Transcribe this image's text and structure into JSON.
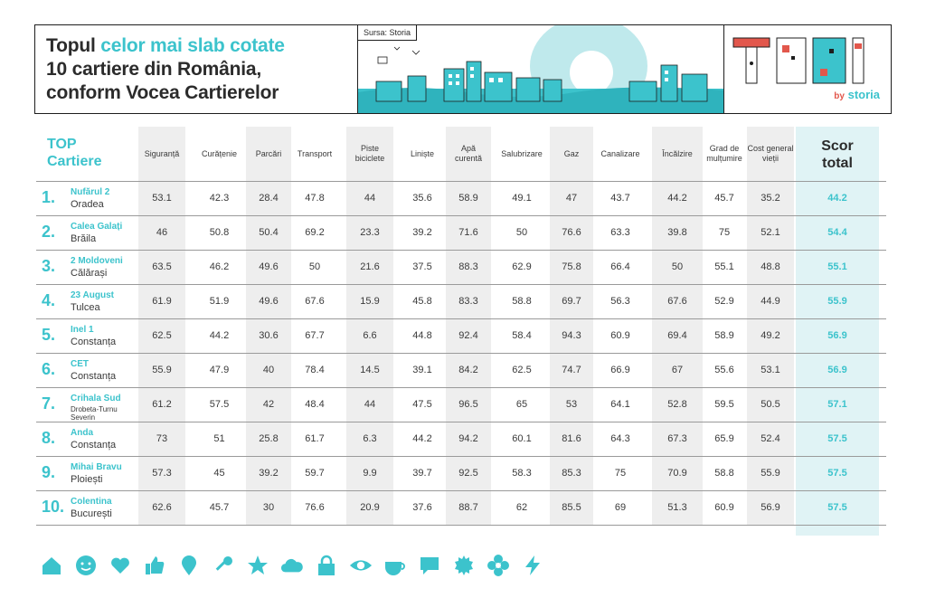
{
  "header": {
    "title_part1": "Topul ",
    "title_highlight": "celor mai slab cotate",
    "title_line2": "10 cartiere din România,",
    "title_line3": "conform Vocea Cartierelor",
    "source": "Sursa: Storia"
  },
  "logo": {
    "by": "by",
    "brand": "storia"
  },
  "table": {
    "top_label_1": "TOP",
    "top_label_2": "Cartiere",
    "score_label_1": "Scor",
    "score_label_2": "total",
    "columns": [
      {
        "line1": "Siguranță",
        "line2": ""
      },
      {
        "line1": "Curățenie",
        "line2": ""
      },
      {
        "line1": "Parcări",
        "line2": ""
      },
      {
        "line1": "Transport",
        "line2": ""
      },
      {
        "line1": "Piste",
        "line2": "biciclete"
      },
      {
        "line1": "Liniște",
        "line2": ""
      },
      {
        "line1": "Apă",
        "line2": "curentă"
      },
      {
        "line1": "Salubrizare",
        "line2": ""
      },
      {
        "line1": "Gaz",
        "line2": ""
      },
      {
        "line1": "Canalizare",
        "line2": ""
      },
      {
        "line1": "Încălzire",
        "line2": ""
      },
      {
        "line1": "Grad de",
        "line2": "mulțumire"
      },
      {
        "line1": "Cost general",
        "line2": "vieții"
      }
    ],
    "rows": [
      {
        "rank": "1.",
        "name": "Nufărul 2",
        "city": "Oradea",
        "values": [
          "53.1",
          "42.3",
          "28.4",
          "47.8",
          "44",
          "35.6",
          "58.9",
          "49.1",
          "47",
          "43.7",
          "44.2",
          "45.7",
          "35.2"
        ],
        "score": "44.2"
      },
      {
        "rank": "2.",
        "name": "Calea Galați",
        "city": "Brăila",
        "values": [
          "46",
          "50.8",
          "50.4",
          "69.2",
          "23.3",
          "39.2",
          "71.6",
          "50",
          "76.6",
          "63.3",
          "39.8",
          "75",
          "52.1"
        ],
        "score": "54.4"
      },
      {
        "rank": "3.",
        "name": "2 Moldoveni",
        "city": "Călărași",
        "values": [
          "63.5",
          "46.2",
          "49.6",
          "50",
          "21.6",
          "37.5",
          "88.3",
          "62.9",
          "75.8",
          "66.4",
          "50",
          "55.1",
          "48.8"
        ],
        "score": "55.1"
      },
      {
        "rank": "4.",
        "name": "23 August",
        "city": "Tulcea",
        "values": [
          "61.9",
          "51.9",
          "49.6",
          "67.6",
          "15.9",
          "45.8",
          "83.3",
          "58.8",
          "69.7",
          "56.3",
          "67.6",
          "52.9",
          "44.9"
        ],
        "score": "55.9"
      },
      {
        "rank": "5.",
        "name": "Inel 1",
        "city": "Constanța",
        "values": [
          "62.5",
          "44.2",
          "30.6",
          "67.7",
          "6.6",
          "44.8",
          "92.4",
          "58.4",
          "94.3",
          "60.9",
          "69.4",
          "58.9",
          "49.2"
        ],
        "score": "56.9"
      },
      {
        "rank": "6.",
        "name": "CET",
        "city": "Constanța",
        "values": [
          "55.9",
          "47.9",
          "40",
          "78.4",
          "14.5",
          "39.1",
          "84.2",
          "62.5",
          "74.7",
          "66.9",
          "67",
          "55.6",
          "53.1"
        ],
        "score": "56.9"
      },
      {
        "rank": "7.",
        "name": "Crihala Sud",
        "city": "Drobeta-Turnu Severin",
        "values": [
          "61.2",
          "57.5",
          "42",
          "48.4",
          "44",
          "47.5",
          "96.5",
          "65",
          "53",
          "64.1",
          "52.8",
          "59.5",
          "50.5"
        ],
        "score": "57.1"
      },
      {
        "rank": "8.",
        "name": "Anda",
        "city": "Constanța",
        "values": [
          "73",
          "51",
          "25.8",
          "61.7",
          "6.3",
          "44.2",
          "94.2",
          "60.1",
          "81.6",
          "64.3",
          "67.3",
          "65.9",
          "52.4"
        ],
        "score": "57.5"
      },
      {
        "rank": "9.",
        "name": "Mihai Bravu",
        "city": "Ploiești",
        "values": [
          "57.3",
          "45",
          "39.2",
          "59.7",
          "9.9",
          "39.7",
          "92.5",
          "58.3",
          "85.3",
          "75",
          "70.9",
          "58.8",
          "55.9"
        ],
        "score": "57.5"
      },
      {
        "rank": "10.",
        "name": "Colentina",
        "city": "București",
        "values": [
          "62.6",
          "45.7",
          "30",
          "76.6",
          "20.9",
          "37.6",
          "88.7",
          "62",
          "85.5",
          "69",
          "51.3",
          "60.9",
          "56.9"
        ],
        "score": "57.5"
      }
    ]
  },
  "footer_icons": [
    "home-icon",
    "smiley-icon",
    "heart-icon",
    "thumbs-up-icon",
    "pin-icon",
    "key-icon",
    "star-icon",
    "cloud-icon",
    "lock-icon",
    "eye-icon",
    "cup-icon",
    "chat-icon",
    "sun-icon",
    "flower-icon",
    "bolt-icon"
  ],
  "colors": {
    "accent": "#3cc3cc",
    "text": "#3a3a3a",
    "stripe": "#eeeeee",
    "score_bg": "#e0f3f5",
    "logo_red": "#e2574c"
  }
}
